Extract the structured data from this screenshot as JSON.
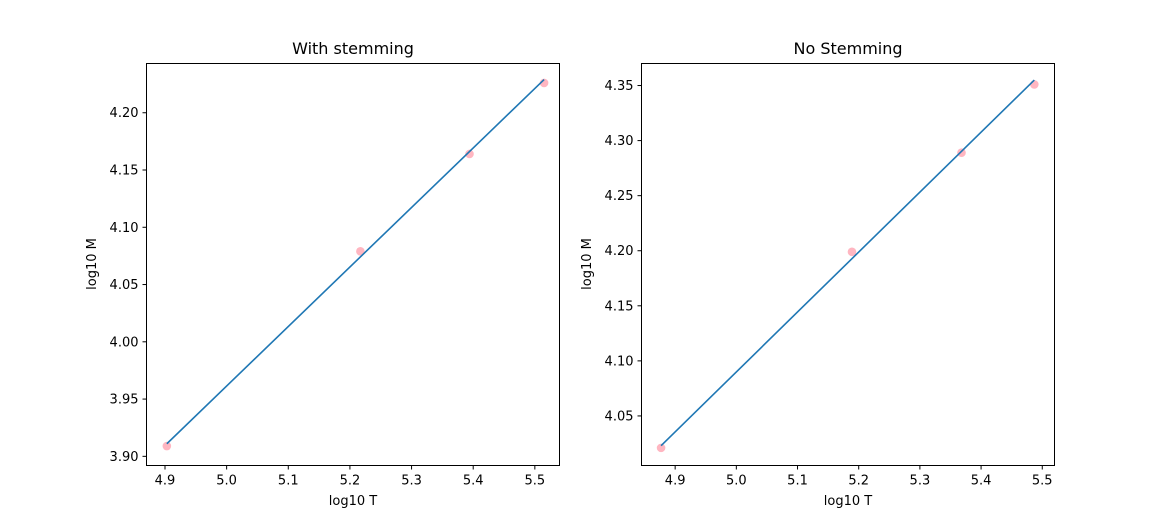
{
  "chart_data": [
    {
      "type": "scatter",
      "title": "With stemming",
      "xlabel": "log10 T",
      "ylabel": "log10 M",
      "xlim": [
        4.87,
        5.54
      ],
      "ylim": [
        3.892,
        4.243
      ],
      "x_ticks": [
        4.9,
        5.0,
        5.1,
        5.2,
        5.3,
        5.4,
        5.5
      ],
      "y_ticks": [
        3.9,
        3.95,
        4.0,
        4.05,
        4.1,
        4.15,
        4.2
      ],
      "x_tick_labels": [
        "4.9",
        "5.0",
        "5.1",
        "5.2",
        "5.3",
        "5.4",
        "5.5"
      ],
      "y_tick_labels": [
        "3.90",
        "3.95",
        "4.00",
        "4.05",
        "4.10",
        "4.15",
        "4.20"
      ],
      "grid": false,
      "series": [
        {
          "kind": "points",
          "x": [
            4.903,
            5.217,
            5.394,
            5.515
          ],
          "y": [
            3.909,
            4.079,
            4.164,
            4.226
          ]
        },
        {
          "kind": "line",
          "x": [
            4.903,
            5.515
          ],
          "y": [
            3.911,
            4.229
          ]
        }
      ]
    },
    {
      "type": "scatter",
      "title": "No Stemming",
      "xlabel": "log10 T",
      "ylabel": "log10 M",
      "xlim": [
        4.845,
        5.52
      ],
      "ylim": [
        4.005,
        4.37
      ],
      "x_ticks": [
        4.9,
        5.0,
        5.1,
        5.2,
        5.3,
        5.4,
        5.5
      ],
      "y_ticks": [
        4.05,
        4.1,
        4.15,
        4.2,
        4.25,
        4.3,
        4.35
      ],
      "x_tick_labels": [
        "4.9",
        "5.0",
        "5.1",
        "5.2",
        "5.3",
        "5.4",
        "5.5"
      ],
      "y_tick_labels": [
        "4.05",
        "4.10",
        "4.15",
        "4.20",
        "4.25",
        "4.30",
        "4.35"
      ],
      "grid": false,
      "series": [
        {
          "kind": "points",
          "x": [
            4.877,
            5.189,
            5.368,
            5.487
          ],
          "y": [
            4.021,
            4.199,
            4.289,
            4.351
          ]
        },
        {
          "kind": "line",
          "x": [
            4.877,
            5.487
          ],
          "y": [
            4.023,
            4.355
          ]
        }
      ]
    }
  ],
  "colors": {
    "points": "#ffb6c1",
    "line": "#1f77b4"
  }
}
